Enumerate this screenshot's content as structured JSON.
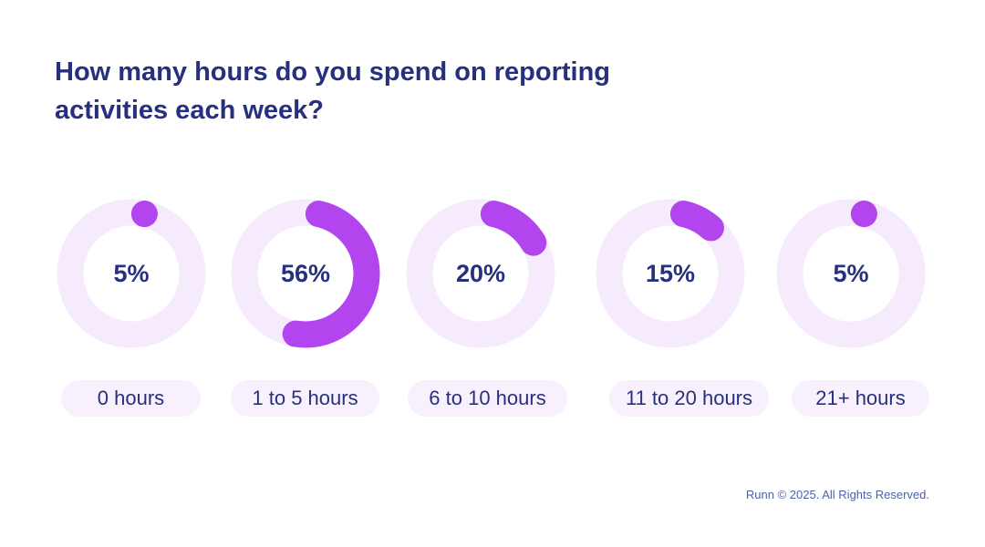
{
  "chart_data": {
    "type": "pie",
    "title": "How many hours do you spend on reporting activities each week?",
    "categories": [
      "0 hours",
      "1 to 5 hours",
      "6 to 10 hours",
      "11 to 20 hours",
      "21+ hours"
    ],
    "values": [
      5,
      56,
      20,
      15,
      5
    ],
    "value_labels": [
      "5%",
      "56%",
      "20%",
      "15%",
      "5%"
    ],
    "unit": "%",
    "colors": {
      "arc": "#b245ee",
      "track": "#f6ebfd",
      "text": "#27307e",
      "pill": "#f8f0fd"
    }
  },
  "footer": "Runn © 2025. All Rights Reserved."
}
